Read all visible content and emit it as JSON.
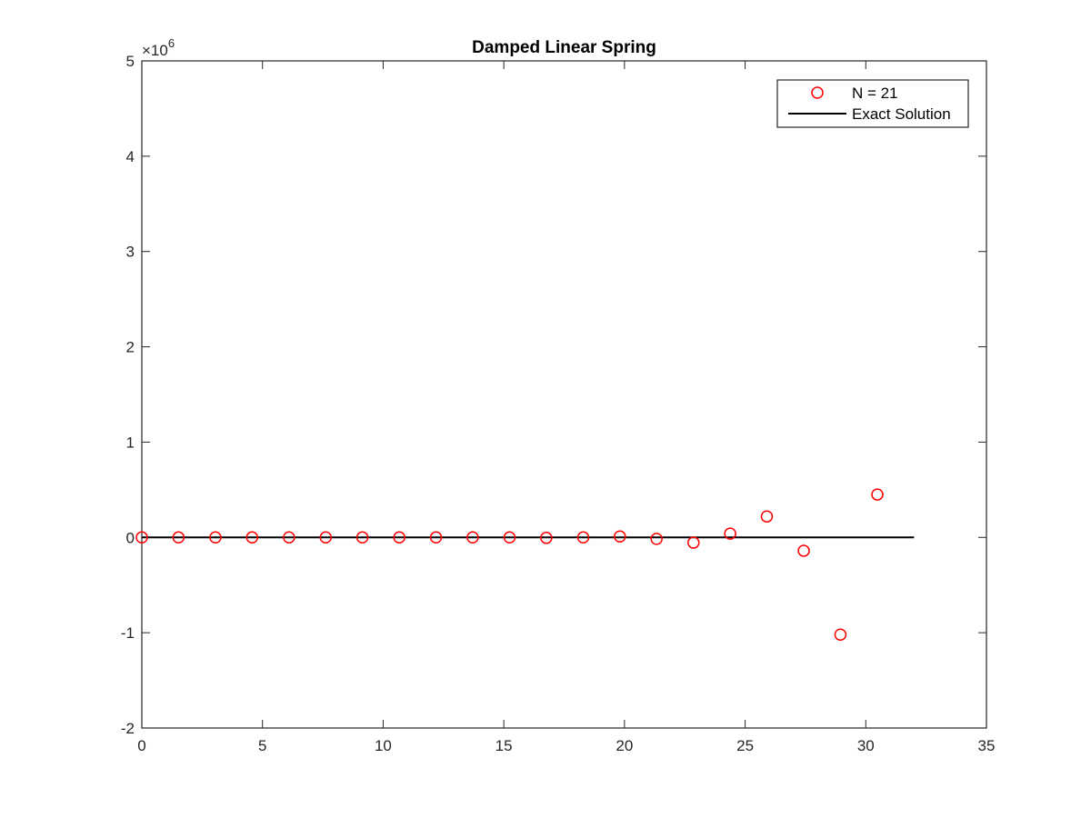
{
  "chart_data": {
    "type": "scatter",
    "title": "Damped Linear Spring",
    "xlabel": "",
    "ylabel": "",
    "xlim": [
      0,
      35
    ],
    "ylim": [
      -2000000,
      5000000
    ],
    "xticks": [
      "0",
      "5",
      "10",
      "15",
      "20",
      "25",
      "30",
      "35"
    ],
    "yticks": [
      "-2",
      "-1",
      "0",
      "1",
      "2",
      "3",
      "4",
      "5"
    ],
    "y_exponent": {
      "base": "×10",
      "power": "6"
    },
    "grid": false,
    "legend_position": "top-right",
    "series": [
      {
        "name": "N = 21",
        "style": "markers",
        "marker": "circle",
        "color": "#ff0000",
        "x": [
          0,
          1.52,
          3.05,
          4.57,
          6.1,
          7.62,
          9.14,
          10.67,
          12.19,
          13.71,
          15.24,
          16.76,
          18.29,
          19.81,
          21.33,
          22.86,
          24.38,
          25.9,
          27.43,
          28.95,
          30.48
        ],
        "y": [
          0,
          0,
          0,
          0,
          0,
          0,
          0,
          0,
          0,
          0,
          0,
          -5000,
          0,
          10000,
          -15000,
          -55000,
          40000,
          220000,
          -140000,
          -1020000,
          450000
        ]
      },
      {
        "name": "Exact Solution",
        "style": "line",
        "color": "#000000",
        "x": [
          0,
          32
        ],
        "y": [
          0,
          0
        ]
      }
    ]
  }
}
